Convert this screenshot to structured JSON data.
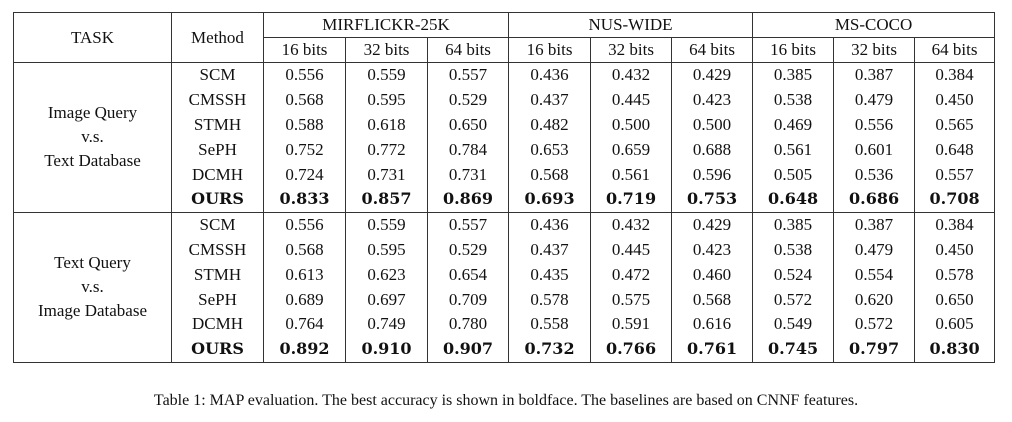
{
  "table": {
    "task_header": "TASK",
    "method_header": "Method",
    "datasets": [
      "MIRFLICKR-25K",
      "NUS-WIDE",
      "MS-COCO"
    ],
    "bits": [
      "16 bits",
      "32 bits",
      "64 bits"
    ],
    "groups": [
      {
        "task_lines": [
          "Image Query",
          "v.s.",
          "Text Database"
        ],
        "rows": [
          {
            "method": "SCM",
            "values": [
              "0.556",
              "0.559",
              "0.557",
              "0.436",
              "0.432",
              "0.429",
              "0.385",
              "0.387",
              "0.384"
            ]
          },
          {
            "method": "CMSSH",
            "values": [
              "0.568",
              "0.595",
              "0.529",
              "0.437",
              "0.445",
              "0.423",
              "0.538",
              "0.479",
              "0.450"
            ]
          },
          {
            "method": "STMH",
            "values": [
              "0.588",
              "0.618",
              "0.650",
              "0.482",
              "0.500",
              "0.500",
              "0.469",
              "0.556",
              "0.565"
            ]
          },
          {
            "method": "SePH",
            "values": [
              "0.752",
              "0.772",
              "0.784",
              "0.653",
              "0.659",
              "0.688",
              "0.561",
              "0.601",
              "0.648"
            ]
          },
          {
            "method": "DCMH",
            "values": [
              "0.724",
              "0.731",
              "0.731",
              "0.568",
              "0.561",
              "0.596",
              "0.505",
              "0.536",
              "0.557"
            ]
          },
          {
            "method": "OURS",
            "values": [
              "0.833",
              "0.857",
              "0.869",
              "0.693",
              "0.719",
              "0.753",
              "0.648",
              "0.686",
              "0.708"
            ],
            "bold": true
          }
        ]
      },
      {
        "task_lines": [
          "Text Query",
          "v.s.",
          "Image Database"
        ],
        "rows": [
          {
            "method": "SCM",
            "values": [
              "0.556",
              "0.559",
              "0.557",
              "0.436",
              "0.432",
              "0.429",
              "0.385",
              "0.387",
              "0.384"
            ]
          },
          {
            "method": "CMSSH",
            "values": [
              "0.568",
              "0.595",
              "0.529",
              "0.437",
              "0.445",
              "0.423",
              "0.538",
              "0.479",
              "0.450"
            ]
          },
          {
            "method": "STMH",
            "values": [
              "0.613",
              "0.623",
              "0.654",
              "0.435",
              "0.472",
              "0.460",
              "0.524",
              "0.554",
              "0.578"
            ]
          },
          {
            "method": "SePH",
            "values": [
              "0.689",
              "0.697",
              "0.709",
              "0.578",
              "0.575",
              "0.568",
              "0.572",
              "0.620",
              "0.650"
            ]
          },
          {
            "method": "DCMH",
            "values": [
              "0.764",
              "0.749",
              "0.780",
              "0.558",
              "0.591",
              "0.616",
              "0.549",
              "0.572",
              "0.605"
            ]
          },
          {
            "method": "OURS",
            "values": [
              "0.892",
              "0.910",
              "0.907",
              "0.732",
              "0.766",
              "0.761",
              "0.745",
              "0.797",
              "0.830"
            ],
            "bold": true
          }
        ]
      }
    ]
  },
  "caption": "Table 1: MAP evaluation. The best accuracy is shown in boldface. The baselines are based on CNNF features."
}
